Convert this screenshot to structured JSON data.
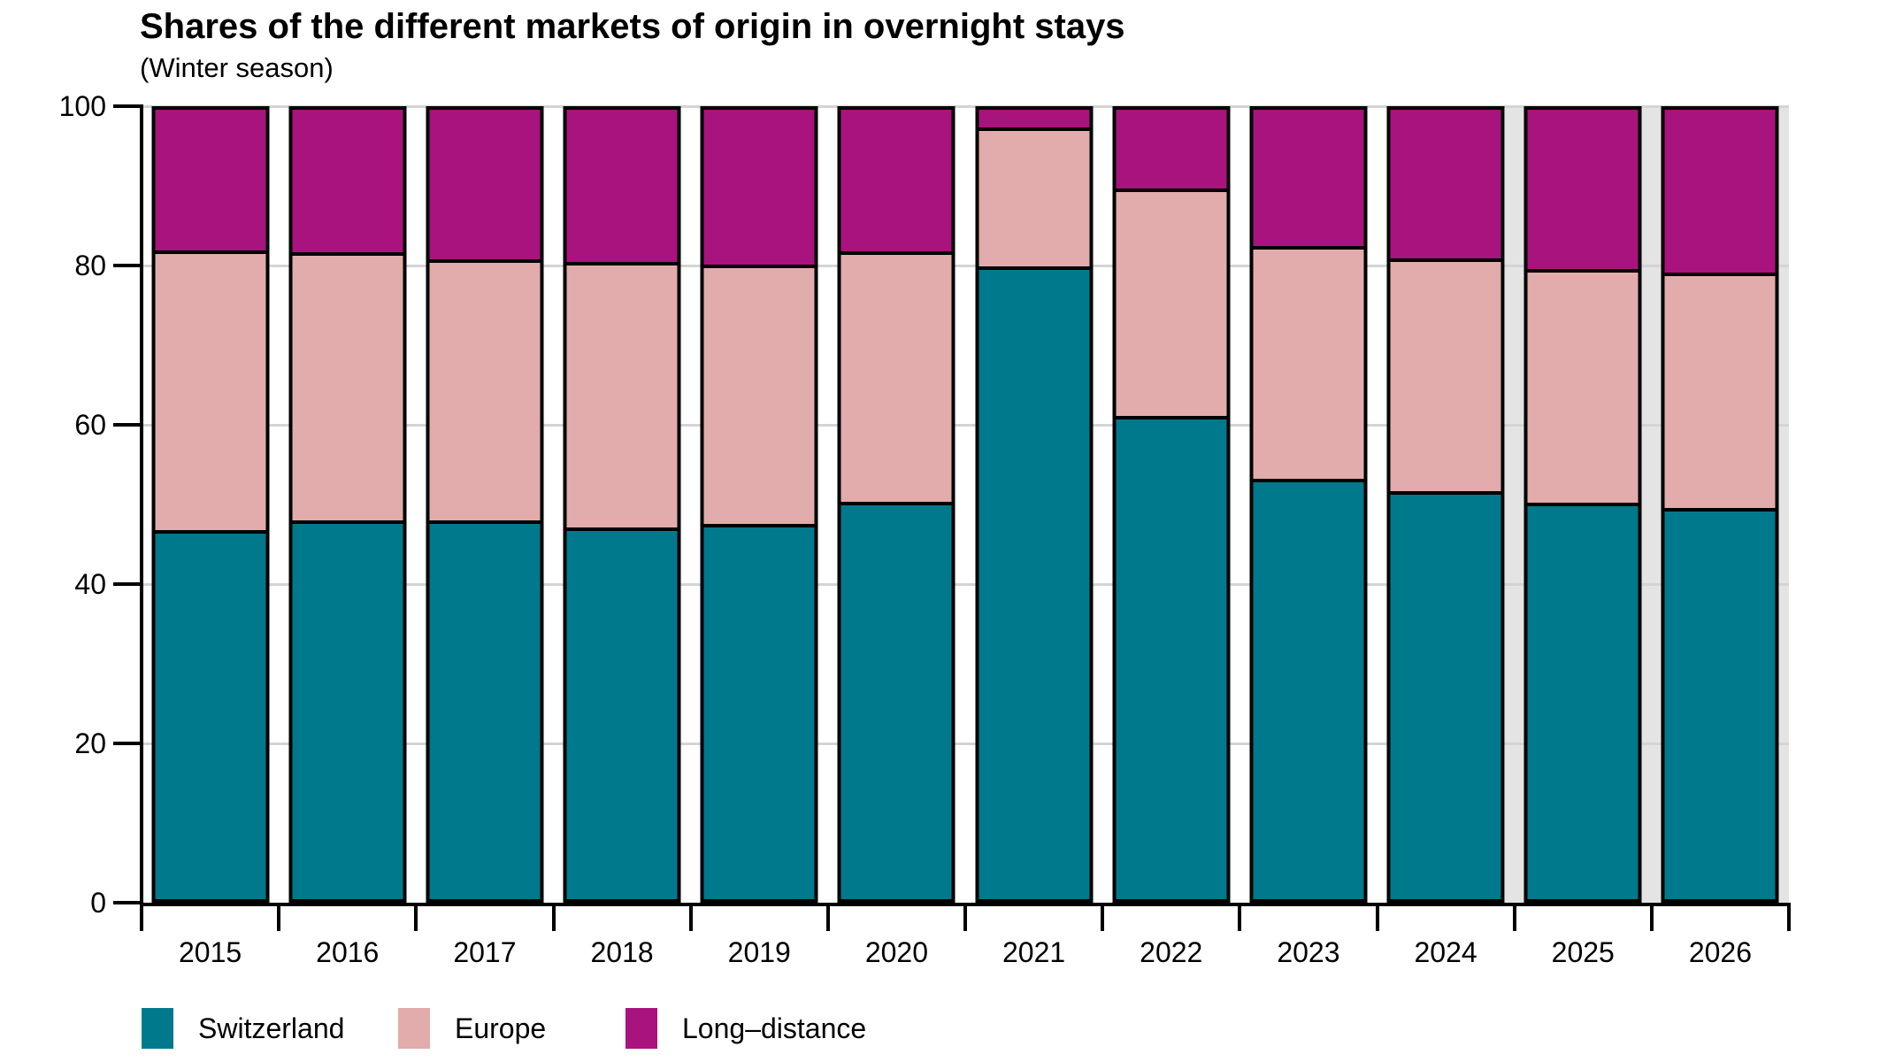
{
  "title": "Shares of the different markets of origin in overnight stays",
  "subtitle": "(Winter season)",
  "chart_data": {
    "type": "bar",
    "stacked": true,
    "title": "Shares of the different markets of origin in overnight stays",
    "subtitle": "(Winter season)",
    "categories": [
      "2015",
      "2016",
      "2017",
      "2018",
      "2019",
      "2020",
      "2021",
      "2022",
      "2023",
      "2024",
      "2025",
      "2026"
    ],
    "series": [
      {
        "name": "Switzerland",
        "color": "#00798c",
        "values": [
          46.8,
          48.0,
          48.0,
          47.1,
          47.5,
          50.3,
          80.2,
          61.2,
          53.3,
          51.7,
          50.2,
          49.5
        ]
      },
      {
        "name": "Europe",
        "color": "#e1acab",
        "values": [
          35.4,
          34.0,
          33.0,
          33.6,
          32.9,
          31.8,
          17.6,
          28.8,
          29.4,
          29.5,
          29.6,
          29.9
        ]
      },
      {
        "name": "Long–distance",
        "color": "#a9137e",
        "values": [
          17.8,
          18.0,
          19.0,
          19.3,
          19.6,
          17.9,
          2.2,
          10.0,
          17.3,
          18.8,
          20.2,
          20.6
        ]
      }
    ],
    "xlabel": "",
    "ylabel": "",
    "ylim": [
      0,
      100
    ],
    "yticks": [
      0,
      20,
      40,
      60,
      80,
      100
    ],
    "grid": "horizontal light-gray lines at 20/40/60/80/100, visible in gaps between bars",
    "legend_position": "bottom-left",
    "highlight_band_categories": [
      "2025",
      "2026"
    ],
    "highlight_band_color": "#e4e4e4",
    "bar_outline_color": "#000000",
    "gridline_color": "#d4d4d4"
  }
}
